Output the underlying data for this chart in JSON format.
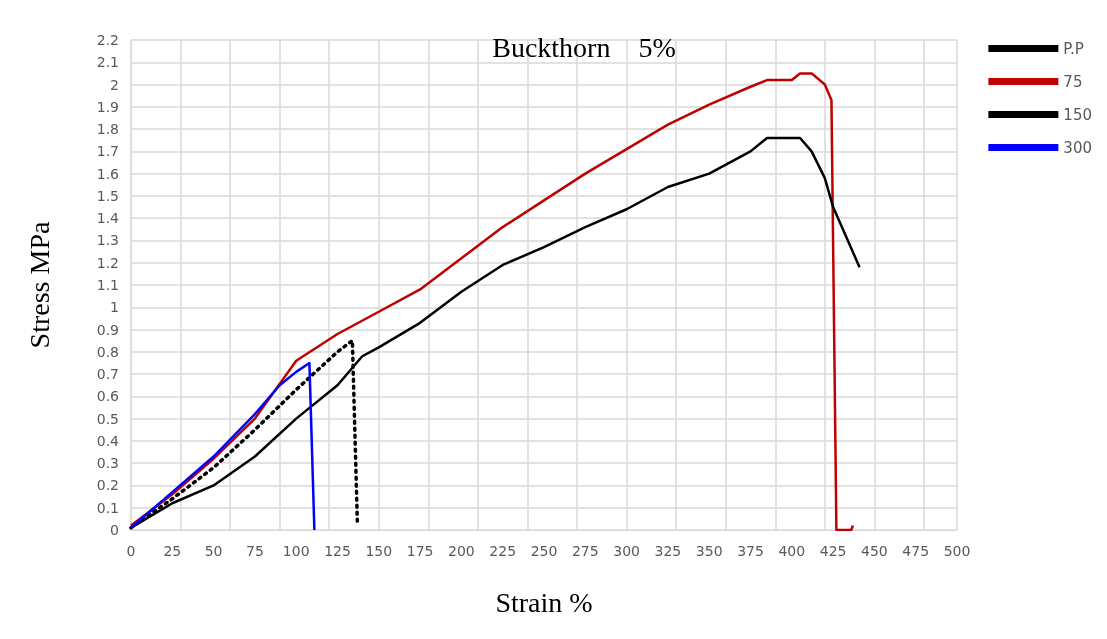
{
  "chart_data": {
    "type": "line",
    "title": "Buckthorn    5%",
    "xlabel": "Strain %",
    "ylabel": "Stress MPa",
    "xlim": [
      0,
      500
    ],
    "xticks": [
      0,
      25,
      50,
      75,
      100,
      125,
      150,
      175,
      200,
      225,
      250,
      275,
      300,
      325,
      350,
      375,
      400,
      425,
      450,
      475,
      500
    ],
    "ylim": [
      0,
      2.2
    ],
    "yticks": [
      0,
      0.1,
      0.2,
      0.3,
      0.4,
      0.5,
      0.6,
      0.7,
      0.8,
      0.9,
      1,
      1.1,
      1.2,
      1.3,
      1.4,
      1.5,
      1.6,
      1.7,
      1.8,
      1.9,
      2,
      2.1,
      2.2
    ],
    "grid": true,
    "legend": "right",
    "marker": "none",
    "series": [
      {
        "name": "P.P",
        "color": "#000000",
        "line_style": "dotted",
        "x": [
          0,
          25,
          50,
          75,
          100,
          125,
          134,
          137
        ],
        "values": [
          0.01,
          0.14,
          0.28,
          0.45,
          0.63,
          0.8,
          0.85,
          0.04
        ]
      },
      {
        "name": "75",
        "color": "#c00000",
        "line_style": "solid",
        "x": [
          0,
          25,
          50,
          75,
          100,
          125,
          150,
          175,
          200,
          225,
          250,
          275,
          300,
          325,
          350,
          375,
          385,
          400,
          405,
          412,
          420,
          424,
          427,
          436,
          437
        ],
        "values": [
          0.02,
          0.16,
          0.32,
          0.5,
          0.76,
          0.88,
          0.98,
          1.08,
          1.22,
          1.36,
          1.48,
          1.6,
          1.71,
          1.82,
          1.91,
          1.99,
          2.02,
          2.02,
          2.05,
          2.05,
          2.0,
          1.93,
          0,
          0,
          0.02
        ]
      },
      {
        "name": "150",
        "color": "#000000",
        "line_style": "solid",
        "x": [
          0,
          25,
          50,
          75,
          100,
          125,
          140,
          150,
          175,
          200,
          225,
          250,
          275,
          300,
          325,
          350,
          375,
          385,
          405,
          412,
          420,
          425,
          441
        ],
        "values": [
          0.01,
          0.12,
          0.2,
          0.33,
          0.5,
          0.65,
          0.78,
          0.82,
          0.93,
          1.07,
          1.19,
          1.27,
          1.36,
          1.44,
          1.54,
          1.6,
          1.7,
          1.76,
          1.76,
          1.7,
          1.58,
          1.45,
          1.18
        ]
      },
      {
        "name": "300",
        "color": "#0000ff",
        "line_style": "solid",
        "x": [
          0,
          25,
          50,
          75,
          90,
          100,
          108,
          111
        ],
        "values": [
          0.01,
          0.17,
          0.33,
          0.52,
          0.65,
          0.71,
          0.75,
          0
        ]
      }
    ]
  }
}
